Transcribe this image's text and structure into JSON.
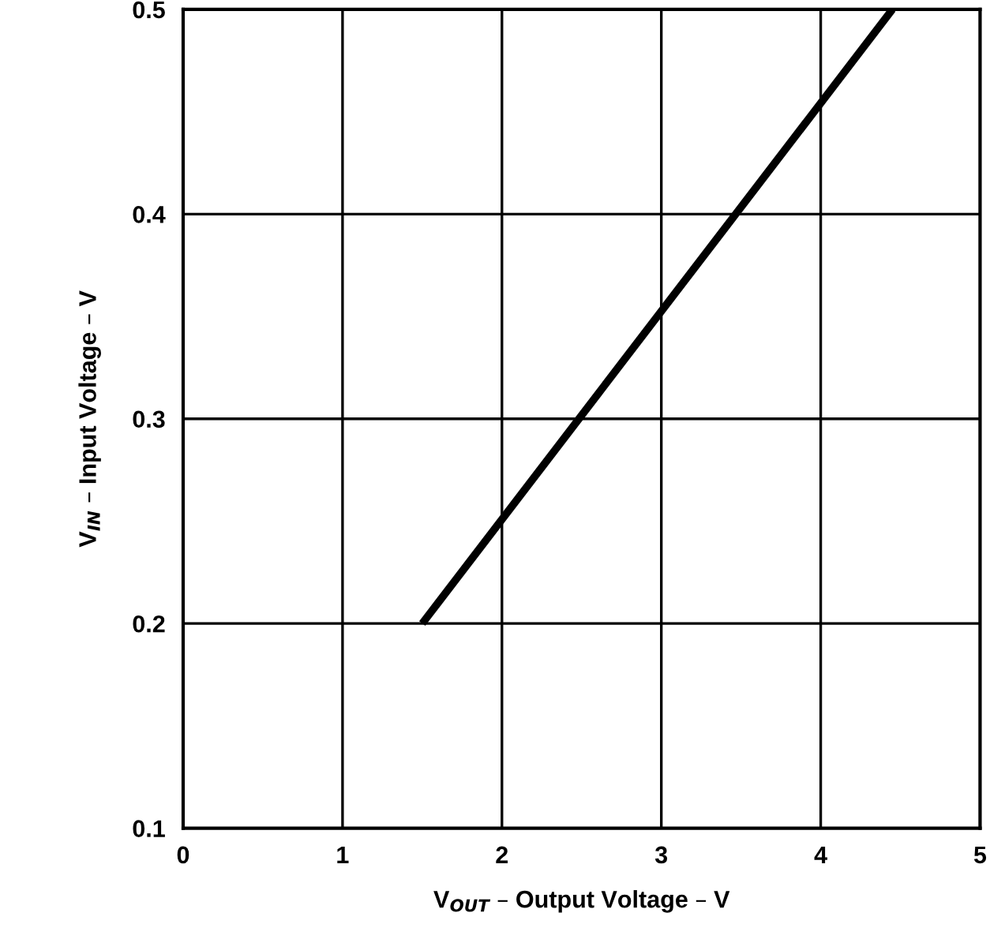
{
  "chart_data": {
    "type": "line",
    "xlabel": "V$_{OUT}$ – Output Voltage – V",
    "ylabel": "V$_{IN}$ – Input Voltage – V",
    "series": [
      {
        "color": "#000000",
        "x": [
          1.5,
          4.45
        ],
        "values": [
          0.2,
          0.5
        ]
      }
    ],
    "xlim": [
      0,
      5
    ],
    "xticks": [
      0,
      1,
      2,
      3,
      4,
      5
    ],
    "ylim": [
      0.1,
      0.5
    ],
    "yticks": [
      0.1,
      0.2,
      0.3,
      0.4,
      0.5
    ],
    "grid": true,
    "marker": "none",
    "line_style": "solid"
  }
}
